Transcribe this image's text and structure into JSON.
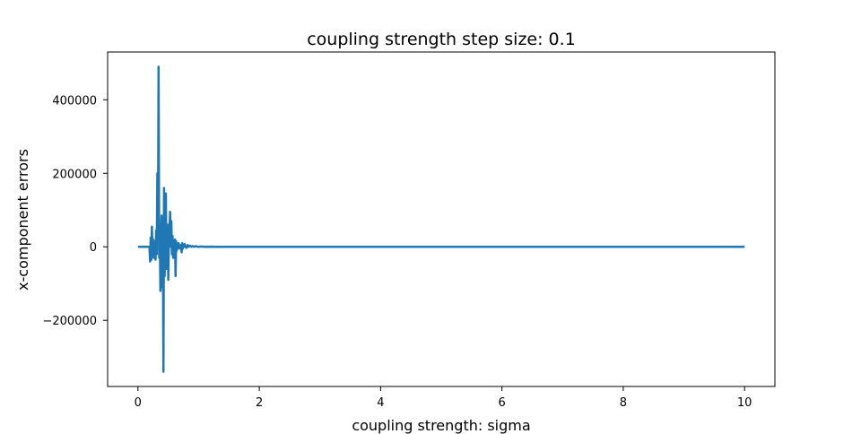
{
  "chart_data": {
    "type": "line",
    "title": "coupling strength step size: 0.1",
    "xlabel": "coupling strength: sigma",
    "ylabel": "x-component errors",
    "xlim": [
      -0.5,
      10.5
    ],
    "ylim": [
      -380000,
      530000
    ],
    "xticks": [
      0,
      2,
      4,
      6,
      8,
      10
    ],
    "xtick_labels": [
      "0",
      "2",
      "4",
      "6",
      "8",
      "10"
    ],
    "yticks": [
      -200000,
      0,
      200000,
      400000
    ],
    "ytick_labels": [
      "−200000",
      "0",
      "200000",
      "400000"
    ],
    "grid": false,
    "color": "#1f77b4",
    "series": [
      {
        "x": [
          0,
          0.1,
          0.19,
          0.2,
          0.21,
          0.22,
          0.23,
          0.24,
          0.25,
          0.26,
          0.27,
          0.28,
          0.29,
          0.3,
          0.31,
          0.32,
          0.33,
          0.34,
          0.35,
          0.36,
          0.37,
          0.38,
          0.39,
          0.4,
          0.41,
          0.42,
          0.43,
          0.44,
          0.45,
          0.46,
          0.47,
          0.48,
          0.49,
          0.5,
          0.51,
          0.52,
          0.53,
          0.54,
          0.55,
          0.56,
          0.57,
          0.58,
          0.59,
          0.6,
          0.61,
          0.62,
          0.63,
          0.64,
          0.65,
          0.66,
          0.67,
          0.68,
          0.69,
          0.7,
          0.71,
          0.72,
          0.73,
          0.74,
          0.75,
          0.76,
          0.77,
          0.78,
          0.8,
          0.82,
          0.84,
          0.86,
          0.88,
          0.9,
          0.92,
          0.95,
          1.0,
          1.05,
          1.1,
          1.2,
          1.3,
          1.4,
          1.6,
          2.0,
          4.0,
          6.0,
          8.0,
          10.0
        ],
        "y": [
          0,
          0,
          0,
          -40000,
          25000,
          -35000,
          55000,
          -20000,
          20000,
          -30000,
          10000,
          15000,
          -35000,
          45000,
          -20000,
          200000,
          30000,
          490000,
          -30000,
          60000,
          -120000,
          30000,
          85000,
          -110000,
          50000,
          -340000,
          160000,
          -80000,
          60000,
          145000,
          -60000,
          0,
          60000,
          -90000,
          20000,
          40000,
          95000,
          0,
          70000,
          -20000,
          30000,
          -30000,
          10000,
          0,
          20000,
          -80000,
          15000,
          -10000,
          5000,
          0,
          10000,
          -5000,
          3000,
          0,
          5000,
          -15000,
          10000,
          -5000,
          5000,
          0,
          8000,
          0,
          -3000,
          5000,
          0,
          3000,
          0,
          2000,
          0,
          1500,
          0,
          800,
          0,
          300,
          0,
          0,
          0,
          0,
          0,
          0,
          0,
          0
        ]
      }
    ]
  }
}
